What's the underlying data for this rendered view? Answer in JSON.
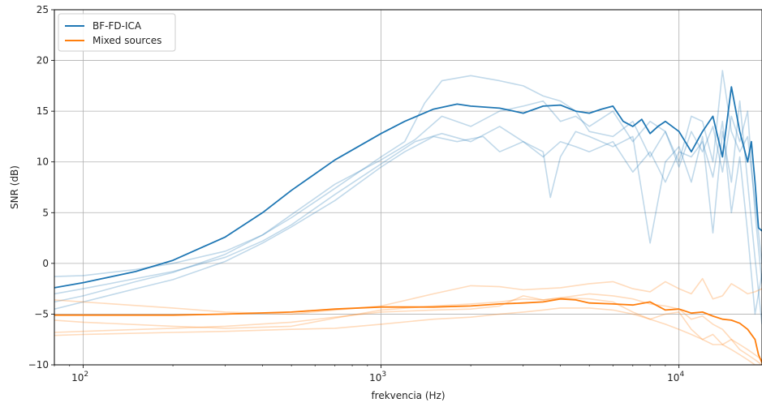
{
  "chart_data": {
    "type": "line",
    "xlabel": "frekvencia (Hz)",
    "ylabel": "SNR (dB)",
    "xscale": "log",
    "xlim": [
      80,
      19000
    ],
    "ylim": [
      -10,
      25
    ],
    "grid": true,
    "legend_position": "top-left",
    "x_ticks": [
      100,
      1000,
      10000
    ],
    "x_tick_labels": [
      {
        "base": "10",
        "exp": "2"
      },
      {
        "base": "10",
        "exp": "3"
      },
      {
        "base": "10",
        "exp": "4"
      }
    ],
    "y_ticks": [
      -10,
      -5,
      0,
      5,
      10,
      15,
      20,
      25
    ],
    "y_tick_labels": [
      "−10",
      "−5",
      "0",
      "5",
      "10",
      "15",
      "20",
      "25"
    ],
    "legend": [
      {
        "label": "BF-FD-ICA",
        "color": "#1f77b4"
      },
      {
        "label": "Mixed sources",
        "color": "#ff7f0e"
      }
    ],
    "series": [
      {
        "name": "BF-FD-ICA",
        "color": "#1f77b4",
        "x": [
          80,
          100,
          150,
          200,
          300,
          400,
          500,
          700,
          1000,
          1200,
          1500,
          1800,
          2000,
          2500,
          3000,
          3500,
          4000,
          4500,
          5000,
          5500,
          6000,
          6500,
          7000,
          7500,
          8000,
          8500,
          9000,
          10000,
          11000,
          12000,
          13000,
          14000,
          15000,
          16000,
          17000,
          17500,
          18000,
          18500,
          19000
        ],
        "y": [
          -2.4,
          -1.9,
          -0.8,
          0.3,
          2.6,
          5.0,
          7.2,
          10.2,
          12.8,
          14.0,
          15.2,
          15.7,
          15.5,
          15.3,
          14.8,
          15.5,
          15.6,
          15.0,
          14.8,
          15.2,
          15.5,
          14.0,
          13.5,
          14.2,
          12.8,
          13.5,
          14.0,
          13.0,
          11.0,
          13.0,
          14.5,
          10.5,
          17.4,
          13.0,
          10.0,
          12.0,
          8.0,
          3.5,
          3.2
        ]
      },
      {
        "name": "Mixed sources",
        "color": "#ff7f0e",
        "x": [
          80,
          100,
          200,
          300,
          500,
          700,
          1000,
          1500,
          2000,
          2500,
          3000,
          3500,
          4000,
          4500,
          5000,
          6000,
          7000,
          8000,
          9000,
          10000,
          11000,
          12000,
          13000,
          14000,
          15000,
          16000,
          17000,
          18000,
          18500,
          19000
        ],
        "y": [
          -5.1,
          -5.1,
          -5.1,
          -5.0,
          -4.8,
          -4.5,
          -4.3,
          -4.3,
          -4.2,
          -4.0,
          -3.9,
          -3.8,
          -3.5,
          -3.6,
          -3.9,
          -4.0,
          -4.1,
          -3.8,
          -4.6,
          -4.5,
          -4.9,
          -4.8,
          -5.2,
          -5.5,
          -5.6,
          -5.9,
          -6.5,
          -7.5,
          -9.0,
          -9.8
        ]
      }
    ],
    "faint_series": [
      {
        "group": "BF-FD-ICA",
        "color": "#1f77b4",
        "x": [
          80,
          100,
          150,
          200,
          300,
          400,
          500,
          700,
          1000,
          1200,
          1400,
          1600,
          2000,
          2500,
          3000,
          3500,
          4000,
          4500,
          5000,
          6000,
          7000,
          8000,
          9000,
          10000,
          11000,
          12000,
          13000,
          14000,
          15000,
          16000,
          17000,
          18000,
          19000
        ],
        "y": [
          -1.3,
          -1.2,
          -0.6,
          0.0,
          1.2,
          2.8,
          4.5,
          7.4,
          10.5,
          12.0,
          15.8,
          18.0,
          18.5,
          18.0,
          17.5,
          16.5,
          16.0,
          15.0,
          13.0,
          12.5,
          14.0,
          10.5,
          13.0,
          10.0,
          14.5,
          14.0,
          10.0,
          19.0,
          13.0,
          11.0,
          12.5,
          6.0,
          0.0
        ]
      },
      {
        "group": "BF-FD-ICA",
        "color": "#1f77b4",
        "x": [
          80,
          100,
          150,
          200,
          300,
          400,
          500,
          700,
          1000,
          1300,
          1600,
          2000,
          2500,
          3000,
          3500,
          3700,
          4000,
          4500,
          5000,
          6000,
          7000,
          8000,
          9000,
          10000,
          11000,
          12000,
          13000,
          14000,
          15000,
          16000,
          17000,
          18000,
          19000
        ],
        "y": [
          -3.0,
          -2.5,
          -1.5,
          -0.8,
          0.6,
          2.2,
          3.8,
          6.8,
          9.8,
          12.0,
          12.8,
          12.0,
          13.5,
          12.0,
          11.0,
          6.5,
          10.5,
          13.0,
          12.5,
          11.5,
          12.5,
          2.0,
          10.0,
          11.5,
          8.0,
          12.5,
          3.0,
          13.0,
          8.0,
          16.0,
          8.0,
          0.5,
          -6.0
        ]
      },
      {
        "group": "BF-FD-ICA",
        "color": "#1f77b4",
        "x": [
          80,
          100,
          150,
          200,
          300,
          400,
          500,
          700,
          1000,
          1300,
          1600,
          2000,
          2500,
          3000,
          3500,
          4000,
          4500,
          5000,
          6000,
          7000,
          8000,
          9000,
          10000,
          11000,
          12000,
          13000,
          14000,
          15000,
          16000,
          17000,
          18000,
          19000
        ],
        "y": [
          -3.8,
          -3.2,
          -1.8,
          -0.9,
          0.9,
          2.8,
          4.8,
          7.8,
          10.2,
          12.2,
          14.5,
          13.5,
          15.0,
          15.5,
          16.0,
          14.0,
          14.5,
          13.5,
          15.0,
          12.0,
          14.0,
          13.0,
          9.5,
          13.0,
          11.0,
          13.5,
          9.0,
          14.5,
          12.0,
          15.0,
          5.0,
          -2.0
        ]
      },
      {
        "group": "BF-FD-ICA",
        "color": "#1f77b4",
        "x": [
          80,
          100,
          150,
          200,
          300,
          400,
          500,
          700,
          1000,
          1200,
          1500,
          1800,
          2200,
          2500,
          3000,
          3500,
          4000,
          4500,
          5000,
          6000,
          7000,
          8000,
          9000,
          10000,
          11000,
          12000,
          13000,
          14000,
          15000,
          16000,
          17000,
          18000,
          19000
        ],
        "y": [
          -4.5,
          -3.8,
          -2.5,
          -1.6,
          0.2,
          2.0,
          3.6,
          6.2,
          9.5,
          11.0,
          12.5,
          12.0,
          12.5,
          11.0,
          12.0,
          10.5,
          12.0,
          11.5,
          11.0,
          12.0,
          9.0,
          11.0,
          8.0,
          11.0,
          10.5,
          12.0,
          8.5,
          14.0,
          5.0,
          10.5,
          3.0,
          -5.0,
          -1.0
        ]
      }
    ],
    "faint_mixed": [
      {
        "group": "Mixed sources",
        "color": "#ff7f0e",
        "x": [
          80,
          100,
          200,
          300,
          500,
          700,
          1000,
          1500,
          2000,
          2500,
          3000,
          3500,
          4000,
          5000,
          6000,
          7000,
          8000,
          9000,
          10000,
          11000,
          12000,
          13000,
          14000,
          15000,
          16000,
          17000,
          18000,
          19000
        ],
        "y": [
          -3.6,
          -3.8,
          -4.4,
          -4.8,
          -5.0,
          -4.6,
          -4.2,
          -3.0,
          -2.2,
          -2.3,
          -2.6,
          -2.5,
          -2.4,
          -2.0,
          -1.8,
          -2.5,
          -2.8,
          -1.8,
          -2.5,
          -3.0,
          -1.5,
          -3.5,
          -3.2,
          -2.0,
          -2.5,
          -3.0,
          -2.8,
          -2.5
        ]
      },
      {
        "group": "Mixed sources",
        "color": "#ff7f0e",
        "x": [
          80,
          100,
          200,
          300,
          500,
          700,
          1000,
          1500,
          2000,
          2500,
          3000,
          3500,
          4000,
          5000,
          6000,
          7000,
          8000,
          9000,
          10000,
          11000,
          12000,
          13000,
          14000,
          15000,
          16000,
          17000,
          18000,
          19000
        ],
        "y": [
          -5.6,
          -5.8,
          -6.2,
          -6.4,
          -6.2,
          -5.4,
          -4.6,
          -4.2,
          -4.0,
          -3.8,
          -3.5,
          -3.6,
          -3.4,
          -3.5,
          -3.8,
          -4.8,
          -5.5,
          -5.0,
          -4.8,
          -6.5,
          -7.5,
          -7.0,
          -8.0,
          -7.5,
          -8.5,
          -9.0,
          -9.5,
          -10.0
        ]
      },
      {
        "group": "Mixed sources",
        "color": "#ff7f0e",
        "x": [
          80,
          100,
          200,
          300,
          500,
          700,
          1000,
          1500,
          2000,
          2500,
          3000,
          3500,
          4000,
          5000,
          6000,
          7000,
          8000,
          9000,
          10000,
          11000,
          12000,
          13000,
          14000,
          15000,
          16000,
          17000,
          18000,
          19000
        ],
        "y": [
          -6.8,
          -6.7,
          -6.4,
          -6.2,
          -5.8,
          -5.3,
          -4.8,
          -4.6,
          -4.5,
          -4.2,
          -3.2,
          -3.6,
          -3.4,
          -3.0,
          -3.2,
          -3.5,
          -4.0,
          -4.2,
          -4.5,
          -5.5,
          -5.2,
          -6.0,
          -6.5,
          -7.5,
          -8.0,
          -8.5,
          -9.0,
          -9.5
        ]
      },
      {
        "group": "Mixed sources",
        "color": "#ff7f0e",
        "x": [
          80,
          100,
          200,
          300,
          500,
          700,
          1000,
          1500,
          2000,
          2500,
          3000,
          3500,
          4000,
          5000,
          6000,
          7000,
          8000,
          9000,
          10000,
          11000,
          12000,
          13000,
          14000,
          15000,
          16000,
          17000,
          18000,
          19000
        ],
        "y": [
          -7.1,
          -7.0,
          -6.8,
          -6.7,
          -6.5,
          -6.4,
          -6.0,
          -5.5,
          -5.3,
          -5.0,
          -4.8,
          -4.6,
          -4.4,
          -4.4,
          -4.6,
          -5.0,
          -5.5,
          -6.0,
          -6.5,
          -7.0,
          -7.5,
          -8.0,
          -8.0,
          -8.5,
          -9.0,
          -9.5,
          -10.0,
          -10.0
        ]
      }
    ]
  }
}
